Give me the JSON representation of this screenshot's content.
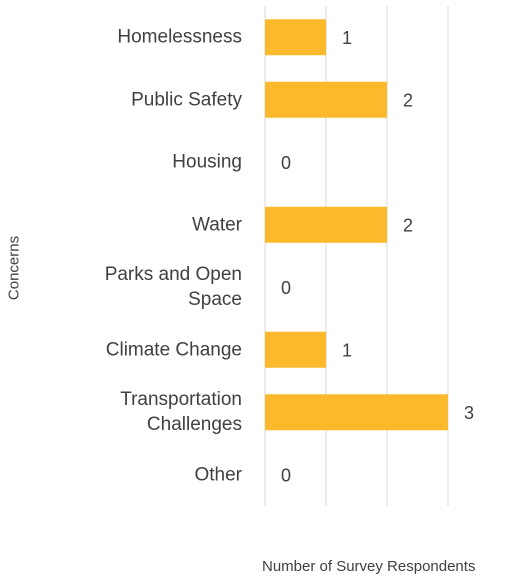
{
  "chart_data": {
    "type": "bar",
    "orientation": "horizontal",
    "categories": [
      "Homelessness",
      "Public Safety",
      "Housing",
      "Water",
      "Parks and Open Space",
      "Climate Change",
      "Transportation Challenges",
      "Other"
    ],
    "values": [
      1,
      2,
      0,
      2,
      0,
      1,
      3,
      0
    ],
    "color": "#fbb92b",
    "xlim": [
      0,
      3
    ],
    "xticks": [
      0,
      1,
      2,
      3
    ],
    "grid": true,
    "xlabel": "Number of Survey Respondents",
    "ylabel": "Concerns"
  }
}
